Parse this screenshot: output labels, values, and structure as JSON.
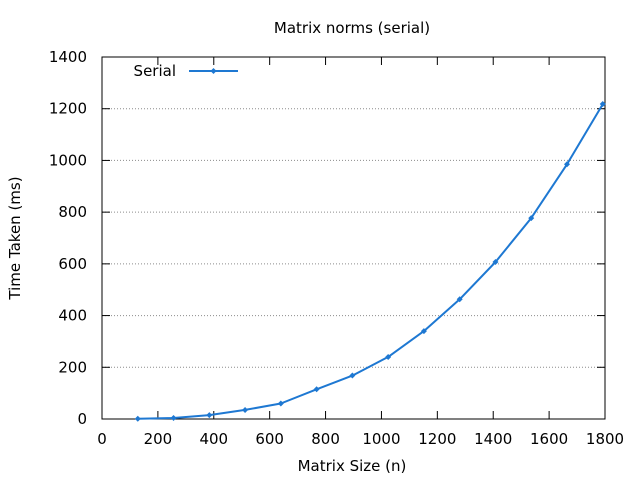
{
  "chart_data": {
    "type": "line",
    "title": "Matrix norms (serial)",
    "xlabel": "Matrix Size (n)",
    "ylabel": "Time Taken (ms)",
    "xlim": [
      0,
      1800
    ],
    "ylim": [
      0,
      1400
    ],
    "xticks": [
      "0",
      "200",
      "400",
      "600",
      "800",
      "1000",
      "1200",
      "1400",
      "1600",
      "1800"
    ],
    "yticks": [
      "0",
      "200",
      "400",
      "600",
      "800",
      "1000",
      "1200",
      "1400"
    ],
    "grid": "horizontal dotted",
    "legend": "top-left",
    "series": [
      {
        "name": "Serial",
        "color": "#1e78d2",
        "marker": "diamond",
        "x": [
          128,
          256,
          384,
          512,
          640,
          768,
          896,
          1024,
          1152,
          1280,
          1408,
          1536,
          1664,
          1792
        ],
        "y": [
          1,
          4,
          15,
          35,
          60,
          115,
          168,
          240,
          340,
          463,
          607,
          777,
          985,
          1218
        ]
      }
    ]
  }
}
